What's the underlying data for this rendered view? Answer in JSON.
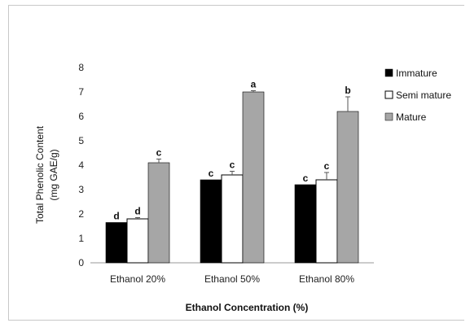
{
  "chart_data": {
    "type": "bar",
    "title": "",
    "xlabel": "Ethanol Concentration (%)",
    "ylabel": "Total Phenolic Content",
    "ylabel_unit": "(mg GAE/g)",
    "ylim": [
      0,
      8
    ],
    "yticks": [
      0,
      1,
      2,
      3,
      4,
      5,
      6,
      7,
      8
    ],
    "categories": [
      "Ethanol 20%",
      "Ethanol 50%",
      "Ethanol 80%"
    ],
    "legend_position": "right",
    "series": [
      {
        "name": "Immature",
        "color": "#000000",
        "fill": "solid",
        "values": [
          1.65,
          3.4,
          3.2
        ],
        "errors": [
          0.0,
          0.0,
          0.0
        ],
        "labels": [
          "d",
          "c",
          "c"
        ]
      },
      {
        "name": "Semi mature",
        "color": "#ffffff",
        "fill": "outline",
        "values": [
          1.8,
          3.6,
          3.4
        ],
        "errors": [
          0.05,
          0.15,
          0.3
        ],
        "labels": [
          "d",
          "c",
          "c"
        ]
      },
      {
        "name": "Mature",
        "color": "#a6a6a6",
        "fill": "solid",
        "values": [
          4.1,
          7.0,
          6.2
        ],
        "errors": [
          0.15,
          0.05,
          0.6
        ],
        "labels": [
          "c",
          "a",
          "b"
        ]
      }
    ]
  }
}
